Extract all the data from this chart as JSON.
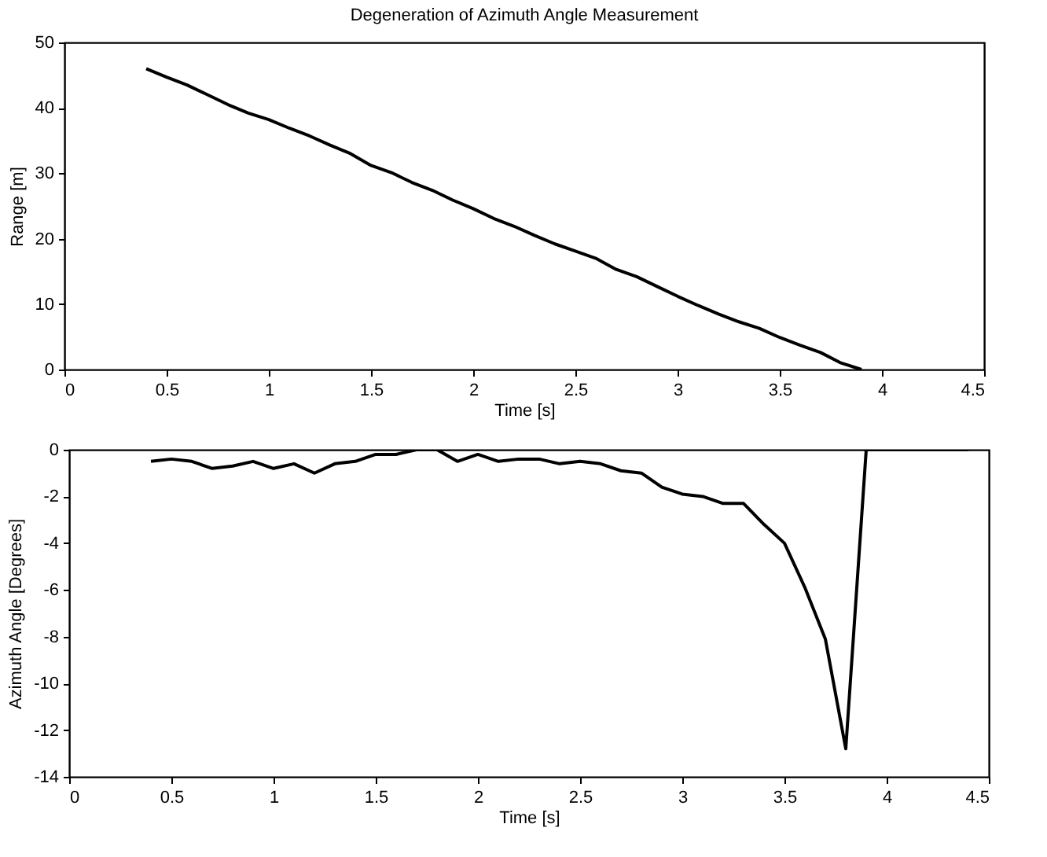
{
  "chart_data": [
    {
      "type": "line",
      "title": "Degeneration of Azimuth Angle Measurement",
      "xlabel": "Time [s]",
      "ylabel": "Range [m]",
      "x": [
        0.4,
        0.5,
        0.6,
        0.7,
        0.8,
        0.9,
        1.0,
        1.1,
        1.2,
        1.3,
        1.4,
        1.5,
        1.6,
        1.7,
        1.8,
        1.9,
        2.0,
        2.1,
        2.2,
        2.3,
        2.4,
        2.5,
        2.6,
        2.7,
        2.8,
        2.9,
        3.0,
        3.1,
        3.2,
        3.3,
        3.4,
        3.5,
        3.6,
        3.7,
        3.8,
        3.9
      ],
      "series": [
        {
          "color": "#000000",
          "values": [
            46,
            44.7,
            43.5,
            42,
            40.5,
            39.2,
            38.2,
            36.9,
            35.7,
            34.3,
            33,
            31.2,
            30.1,
            28.6,
            27.4,
            25.9,
            24.6,
            23.1,
            21.9,
            20.5,
            19.2,
            18.1,
            17,
            15.3,
            14.2,
            12.7,
            11.2,
            9.8,
            8.5,
            7.3,
            6.3,
            4.9,
            3.7,
            2.6,
            1,
            0
          ]
        }
      ],
      "xlim": [
        0,
        4.5
      ],
      "xticks": [
        0,
        0.5,
        1,
        1.5,
        2,
        2.5,
        3,
        3.5,
        4,
        4.5
      ],
      "ylim": [
        0,
        50
      ],
      "yticks": [
        0,
        10,
        20,
        30,
        40,
        50
      ],
      "grid": false,
      "marker": "none",
      "line_style": "solid"
    },
    {
      "type": "line",
      "xlabel": "Time [s]",
      "ylabel": "Azimuth Angle [Degrees]",
      "x": [
        0.4,
        0.5,
        0.6,
        0.7,
        0.8,
        0.9,
        1.0,
        1.1,
        1.2,
        1.3,
        1.4,
        1.5,
        1.6,
        1.7,
        1.8,
        1.9,
        2.0,
        2.1,
        2.2,
        2.3,
        2.4,
        2.5,
        2.6,
        2.7,
        2.8,
        2.9,
        3.0,
        3.1,
        3.2,
        3.3,
        3.4,
        3.5,
        3.6,
        3.7,
        3.8,
        3.9,
        4.0,
        4.1,
        4.2,
        4.3,
        4.4
      ],
      "series": [
        {
          "color": "#000000",
          "values": [
            -0.5,
            -0.4,
            -0.5,
            -0.8,
            -0.7,
            -0.5,
            -0.8,
            -0.6,
            -1.0,
            -0.6,
            -0.5,
            -0.2,
            -0.2,
            0,
            0,
            -0.5,
            -0.2,
            -0.5,
            -0.4,
            -0.4,
            -0.6,
            -0.5,
            -0.6,
            -0.9,
            -1.0,
            -1.6,
            -1.9,
            -2.0,
            -2.3,
            -2.3,
            -3.2,
            -4.0,
            -5.9,
            -8.1,
            -12.8,
            0,
            0,
            0,
            0,
            0,
            0
          ]
        }
      ],
      "xlim": [
        0,
        4.5
      ],
      "xticks": [
        0,
        0.5,
        1,
        1.5,
        2,
        2.5,
        3,
        3.5,
        4,
        4.5
      ],
      "ylim": [
        -14,
        0
      ],
      "yticks": [
        -14,
        -12,
        -10,
        -8,
        -6,
        -4,
        -2,
        0
      ],
      "grid": false,
      "marker": "none",
      "line_style": "solid"
    }
  ]
}
